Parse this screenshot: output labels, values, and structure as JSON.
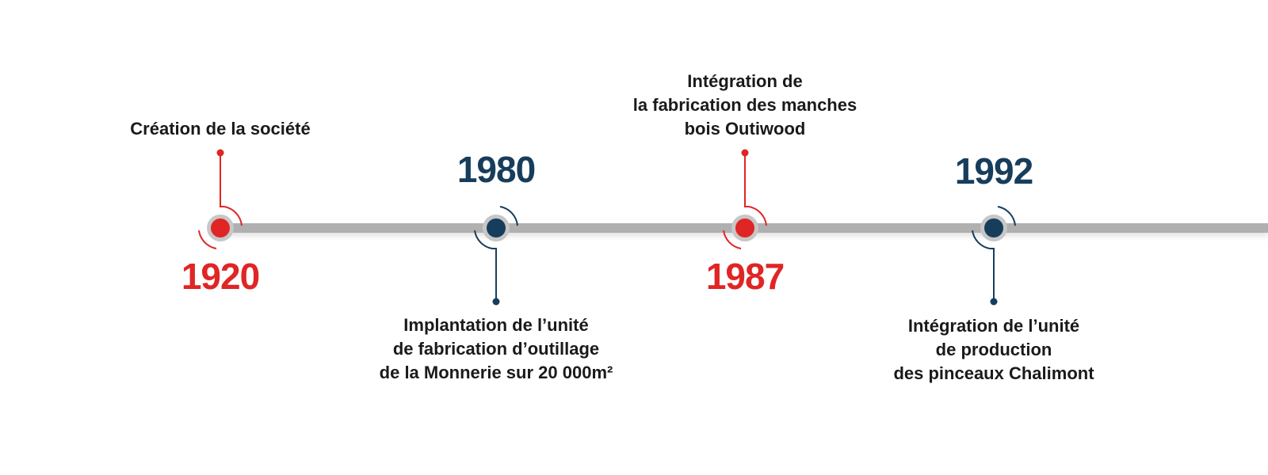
{
  "colors": {
    "red": "#e02525",
    "navy": "#173d5c",
    "track": "#b0b0b0",
    "ring": "#c7c7c7",
    "text": "#1a1a1a"
  },
  "events": [
    {
      "year": "1920",
      "label": "Création de la société",
      "color": "red"
    },
    {
      "year": "1980",
      "label": "Implantation de l’unité\nde fabrication d’outillage\nde la Monnerie sur 20 000m²",
      "color": "navy"
    },
    {
      "year": "1987",
      "label": "Intégration de\nla fabrication des manches\nbois Outiwood",
      "color": "red"
    },
    {
      "year": "1992",
      "label": "Intégration de l’unité\nde production\ndes pinceaux Chalimont",
      "color": "navy"
    }
  ]
}
